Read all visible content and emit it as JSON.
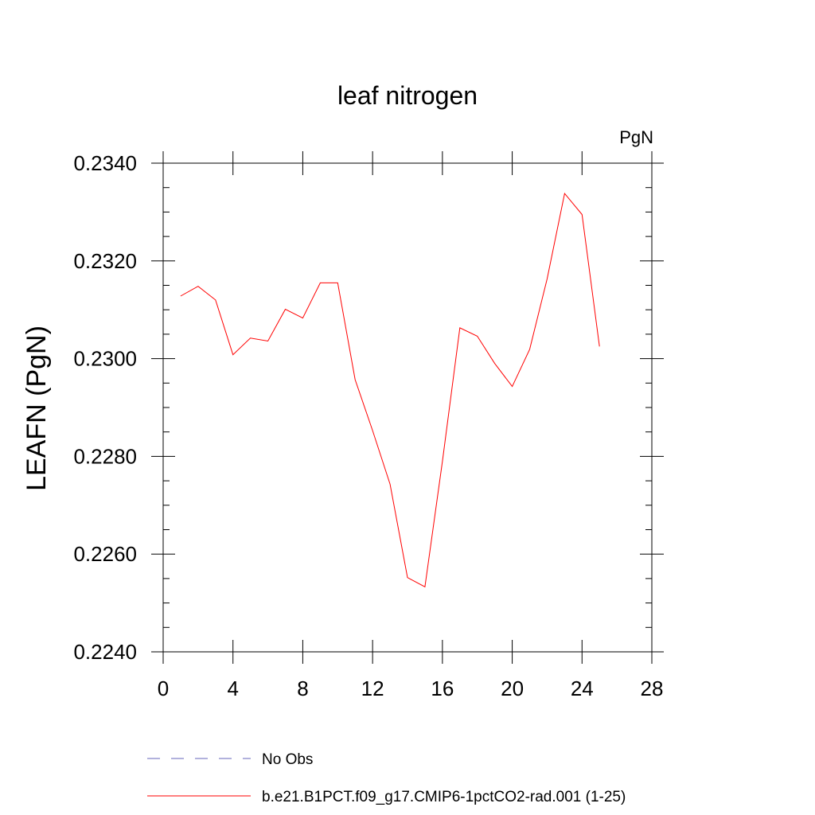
{
  "chart_data": {
    "type": "line",
    "title": "leaf nitrogen",
    "units_label": "PgN",
    "xlabel": "",
    "ylabel": "LEAFN  (PgN)",
    "xlim": [
      0,
      28
    ],
    "ylim": [
      0.224,
      0.234
    ],
    "x_ticks": [
      0,
      4,
      8,
      12,
      16,
      20,
      24,
      28
    ],
    "x_tick_labels": [
      "0",
      "4",
      "8",
      "12",
      "16",
      "20",
      "24",
      "28"
    ],
    "x_minor_step": 1,
    "y_ticks": [
      0.224,
      0.226,
      0.228,
      0.23,
      0.232,
      0.234
    ],
    "y_tick_labels": [
      "0.2240",
      "0.2260",
      "0.2280",
      "0.2300",
      "0.2320",
      "0.2340"
    ],
    "y_minor_step": 0.0005,
    "grid": false,
    "series": [
      {
        "name": "b.e21.B1PCT.f09_g17.CMIP6-1pctCO2-rad.001 (1-25)",
        "color": "#ff0000",
        "dash": "solid",
        "x": [
          1,
          2,
          3,
          4,
          5,
          6,
          7,
          8,
          9,
          10,
          11,
          12,
          13,
          14,
          15,
          16,
          17,
          18,
          19,
          20,
          21,
          22,
          23,
          24,
          25
        ],
        "values": [
          0.23128,
          0.23148,
          0.2312,
          0.23008,
          0.23042,
          0.23036,
          0.23101,
          0.23083,
          0.23155,
          0.23155,
          0.22957,
          0.22853,
          0.22743,
          0.22552,
          0.22533,
          0.2279,
          0.23063,
          0.23046,
          0.2299,
          0.22943,
          0.23019,
          0.23163,
          0.23338,
          0.23295,
          0.23025
        ]
      }
    ],
    "legend": {
      "placement": "bottom",
      "entries": [
        {
          "label": "No Obs",
          "color": "#6666bb",
          "dash": "dashed"
        },
        {
          "label": "b.e21.B1PCT.f09_g17.CMIP6-1pctCO2-rad.001 (1-25)",
          "color": "#ff0000",
          "dash": "solid"
        }
      ]
    }
  }
}
